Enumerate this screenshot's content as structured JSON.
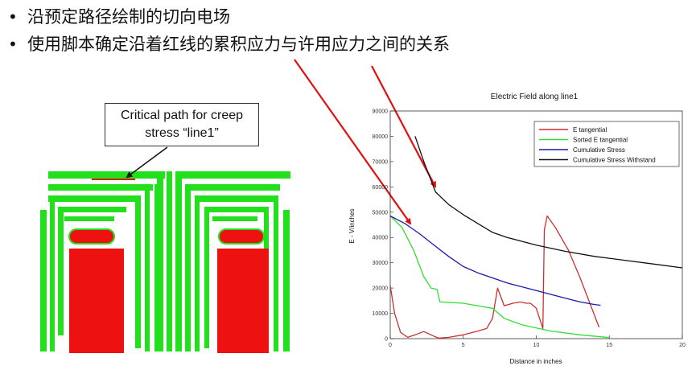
{
  "bullets": [
    "沿预定路径绘制的切向电场",
    "使用脚本确定沿着红线的累积应力与许用应力之间的关系"
  ],
  "callout": {
    "line1": "Critical path for creep",
    "line2": "stress “line1”"
  },
  "colors": {
    "insulation_green": "#22e01c",
    "conductor_red": "#ee1111",
    "critical_path_red": "#cc2200",
    "arrow_red": "#e01010"
  },
  "chart_data": {
    "type": "line",
    "title": "Electric Field along line1",
    "xlabel": "Distance in inches",
    "ylabel": "E - V/inches",
    "xlim": [
      0,
      20
    ],
    "ylim": [
      0,
      90000
    ],
    "xticks": [
      0,
      5,
      10,
      15,
      20
    ],
    "yticks": [
      0,
      10000,
      20000,
      30000,
      40000,
      50000,
      60000,
      70000,
      80000,
      90000
    ],
    "grid": false,
    "legend_position": "top-right",
    "series": [
      {
        "name": "E tangential",
        "color": "#c83030",
        "points": [
          [
            0,
            21000
          ],
          [
            0.3,
            10000
          ],
          [
            0.7,
            2500
          ],
          [
            1.2,
            500
          ],
          [
            1.7,
            1500
          ],
          [
            2.3,
            2800
          ],
          [
            2.9,
            1200
          ],
          [
            3.3,
            200
          ],
          [
            4,
            500
          ],
          [
            5,
            1500
          ],
          [
            6,
            3000
          ],
          [
            6.6,
            4000
          ],
          [
            7,
            8000
          ],
          [
            7.35,
            20000
          ],
          [
            7.8,
            13000
          ],
          [
            8.4,
            14000
          ],
          [
            8.9,
            14500
          ],
          [
            9.3,
            14000
          ],
          [
            9.6,
            14000
          ],
          [
            10,
            12000
          ],
          [
            10.45,
            4000
          ],
          [
            10.55,
            43000
          ],
          [
            10.75,
            48500
          ],
          [
            11.3,
            44000
          ],
          [
            12.2,
            35000
          ],
          [
            13,
            24000
          ],
          [
            13.8,
            12000
          ],
          [
            14.3,
            4500
          ]
        ]
      },
      {
        "name": "Sorted E tangential",
        "color": "#33dd33",
        "points": [
          [
            0,
            48500
          ],
          [
            0.8,
            44000
          ],
          [
            1.6,
            35000
          ],
          [
            2.3,
            24500
          ],
          [
            2.8,
            20000
          ],
          [
            3.2,
            19500
          ],
          [
            3.4,
            14500
          ],
          [
            5,
            14000
          ],
          [
            7,
            12000
          ],
          [
            7.8,
            8000
          ],
          [
            9,
            5500
          ],
          [
            11,
            3000
          ],
          [
            13,
            1500
          ],
          [
            15,
            400
          ]
        ]
      },
      {
        "name": "Cumulative Stress",
        "color": "#1a1aaa",
        "points": [
          [
            0,
            48500
          ],
          [
            0.5,
            47000
          ],
          [
            1,
            45500
          ],
          [
            2,
            41500
          ],
          [
            3,
            37000
          ],
          [
            4,
            32500
          ],
          [
            5,
            28500
          ],
          [
            6,
            26000
          ],
          [
            7,
            24000
          ],
          [
            8,
            22000
          ],
          [
            9,
            20500
          ],
          [
            10,
            19000
          ],
          [
            11,
            17500
          ],
          [
            12,
            16000
          ],
          [
            13,
            14500
          ],
          [
            14,
            13500
          ],
          [
            14.4,
            13200
          ]
        ]
      },
      {
        "name": "Cumulative Stress Withstand",
        "color": "#111111",
        "points": [
          [
            1.7,
            80000
          ],
          [
            2.3,
            70000
          ],
          [
            3.1,
            58000
          ],
          [
            4,
            53000
          ],
          [
            5,
            49000
          ],
          [
            6,
            45500
          ],
          [
            7,
            42000
          ],
          [
            8,
            40000
          ],
          [
            10,
            37000
          ],
          [
            12,
            34500
          ],
          [
            14,
            32500
          ],
          [
            16,
            31000
          ],
          [
            18,
            29500
          ],
          [
            20,
            28000
          ]
        ]
      }
    ]
  }
}
